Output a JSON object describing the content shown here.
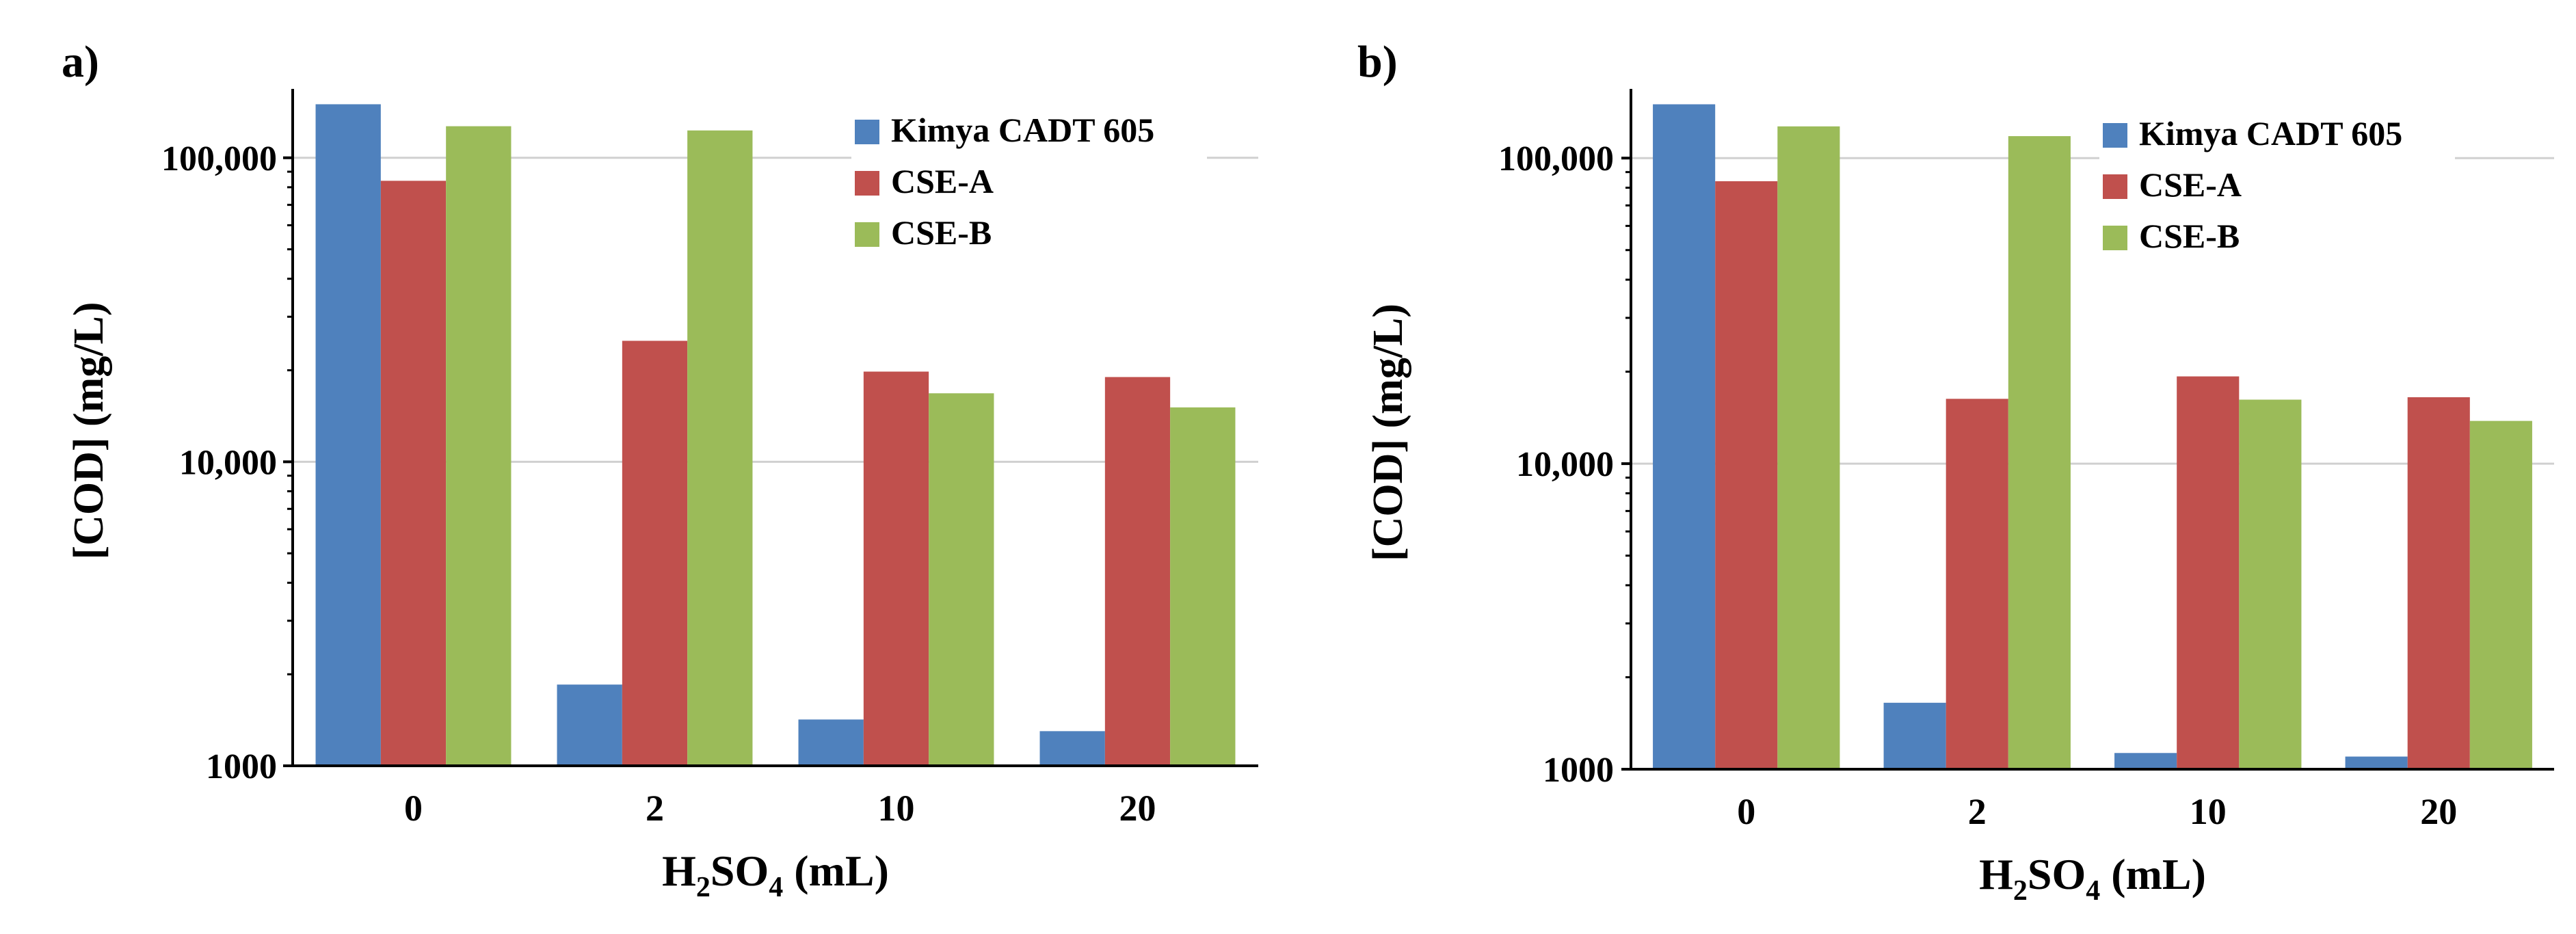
{
  "chart_data": [
    {
      "type": "bar",
      "panel_label": "a)",
      "title": "",
      "xlabel": "H2SO4 (mL)",
      "xlabel_parts": {
        "pre": "H",
        "sub": "2",
        "mid": "SO",
        "sub2": "4",
        "post": " (mL)"
      },
      "ylabel": "[COD]  (mg/L)",
      "yscale": "log",
      "ylim": [
        1000,
        160000
      ],
      "yticks": [
        1000,
        10000,
        100000
      ],
      "ytick_labels": [
        "1000",
        "10,000",
        "100,000"
      ],
      "grid": true,
      "legend": "top-right",
      "categories": [
        "0",
        "2",
        "10",
        "20"
      ],
      "series": [
        {
          "name": "Kimya CADT 605",
          "color": "#4f81bd",
          "values": [
            150000,
            1850,
            1420,
            1300
          ]
        },
        {
          "name": "CSE-A",
          "color": "#c0504d",
          "values": [
            84000,
            25000,
            19800,
            19000
          ]
        },
        {
          "name": "CSE-B",
          "color": "#9bbb59",
          "values": [
            127000,
            123000,
            16800,
            15100
          ]
        }
      ]
    },
    {
      "type": "bar",
      "panel_label": "b)",
      "title": "",
      "xlabel": "H2SO4 (mL)",
      "xlabel_parts": {
        "pre": "H",
        "sub": "2",
        "mid": "SO",
        "sub2": "4",
        "post": " (mL)"
      },
      "ylabel": "[COD]  (mg/L)",
      "yscale": "log",
      "ylim": [
        1000,
        160000
      ],
      "yticks": [
        1000,
        10000,
        100000
      ],
      "ytick_labels": [
        "1000",
        "10,000",
        "100,000"
      ],
      "grid": true,
      "legend": "top-right",
      "categories": [
        "0",
        "2",
        "10",
        "20"
      ],
      "series": [
        {
          "name": "Kimya CADT 605",
          "color": "#4f81bd",
          "values": [
            150000,
            1650,
            1130,
            1100
          ]
        },
        {
          "name": "CSE-A",
          "color": "#c0504d",
          "values": [
            84000,
            16300,
            19300,
            16500
          ]
        },
        {
          "name": "CSE-B",
          "color": "#9bbb59",
          "values": [
            127000,
            118000,
            16200,
            13800
          ]
        }
      ]
    }
  ]
}
